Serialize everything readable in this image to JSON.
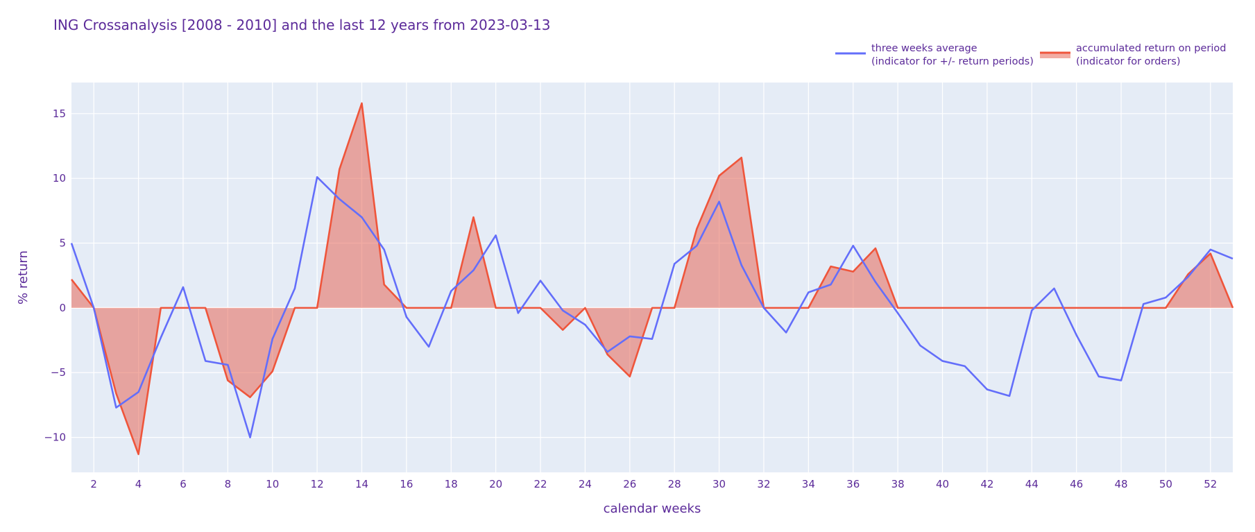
{
  "chart_data": {
    "type": "line",
    "title": "ING Crossanalysis [2008 - 2010] and the last 12 years from 2023-03-13",
    "xlabel": "calendar weeks",
    "ylabel": "% return",
    "xlim": [
      1,
      53
    ],
    "ylim": [
      -12.7,
      17.4
    ],
    "xticks": [
      2,
      4,
      6,
      8,
      10,
      12,
      14,
      16,
      18,
      20,
      22,
      24,
      26,
      28,
      30,
      32,
      34,
      36,
      38,
      40,
      42,
      44,
      46,
      48,
      50,
      52
    ],
    "yticks": [
      -10,
      -5,
      0,
      5,
      10,
      15
    ],
    "grid": true,
    "legend_position": "top-right",
    "x": [
      1,
      2,
      3,
      4,
      5,
      6,
      7,
      8,
      9,
      10,
      11,
      12,
      13,
      14,
      15,
      16,
      17,
      18,
      19,
      20,
      21,
      22,
      23,
      24,
      25,
      26,
      27,
      28,
      29,
      30,
      31,
      32,
      33,
      34,
      35,
      36,
      37,
      38,
      39,
      40,
      41,
      42,
      43,
      44,
      45,
      46,
      47,
      48,
      49,
      50,
      51,
      52,
      53
    ],
    "series": [
      {
        "name": "three weeks average",
        "name_line2": "(indicator for +/- return periods)",
        "color": "#636efa",
        "fill": false,
        "values": [
          5.0,
          0.0,
          -7.7,
          -6.5,
          -2.3,
          1.6,
          -4.1,
          -4.4,
          -10.0,
          -2.4,
          1.5,
          10.1,
          8.4,
          7.0,
          4.5,
          -0.7,
          -3.0,
          1.3,
          2.9,
          5.6,
          -0.4,
          2.1,
          -0.2,
          -1.3,
          -3.4,
          -2.2,
          -2.4,
          3.4,
          4.8,
          8.2,
          3.3,
          0.0,
          -1.9,
          1.2,
          1.8,
          4.8,
          2.0,
          -0.4,
          -2.9,
          -4.1,
          -4.5,
          -6.3,
          -6.8,
          -0.2,
          1.5,
          -2.1,
          -5.3,
          -5.6,
          0.3,
          0.8,
          2.4,
          4.5,
          3.8
        ]
      },
      {
        "name": "accumulated return on period",
        "name_line2": "(indicator for orders)",
        "color": "#ef553b",
        "fill_color": "rgba(231,104,87,0.55)",
        "fill": true,
        "values": [
          2.2,
          0.0,
          -6.6,
          -11.3,
          0.0,
          0.0,
          0.0,
          -5.6,
          -6.9,
          -4.9,
          0.0,
          0.0,
          10.7,
          15.8,
          1.8,
          0.0,
          0.0,
          0.0,
          7.0,
          0.0,
          0.0,
          0.0,
          -1.7,
          0.0,
          -3.6,
          -5.3,
          0.0,
          0.0,
          6.1,
          10.2,
          11.6,
          0.0,
          0.0,
          0.0,
          3.2,
          2.8,
          4.6,
          0.0,
          0.0,
          0.0,
          0.0,
          0.0,
          0.0,
          0.0,
          0.0,
          0.0,
          0.0,
          0.0,
          0.0,
          0.0,
          2.6,
          4.2,
          0.0
        ]
      }
    ]
  }
}
